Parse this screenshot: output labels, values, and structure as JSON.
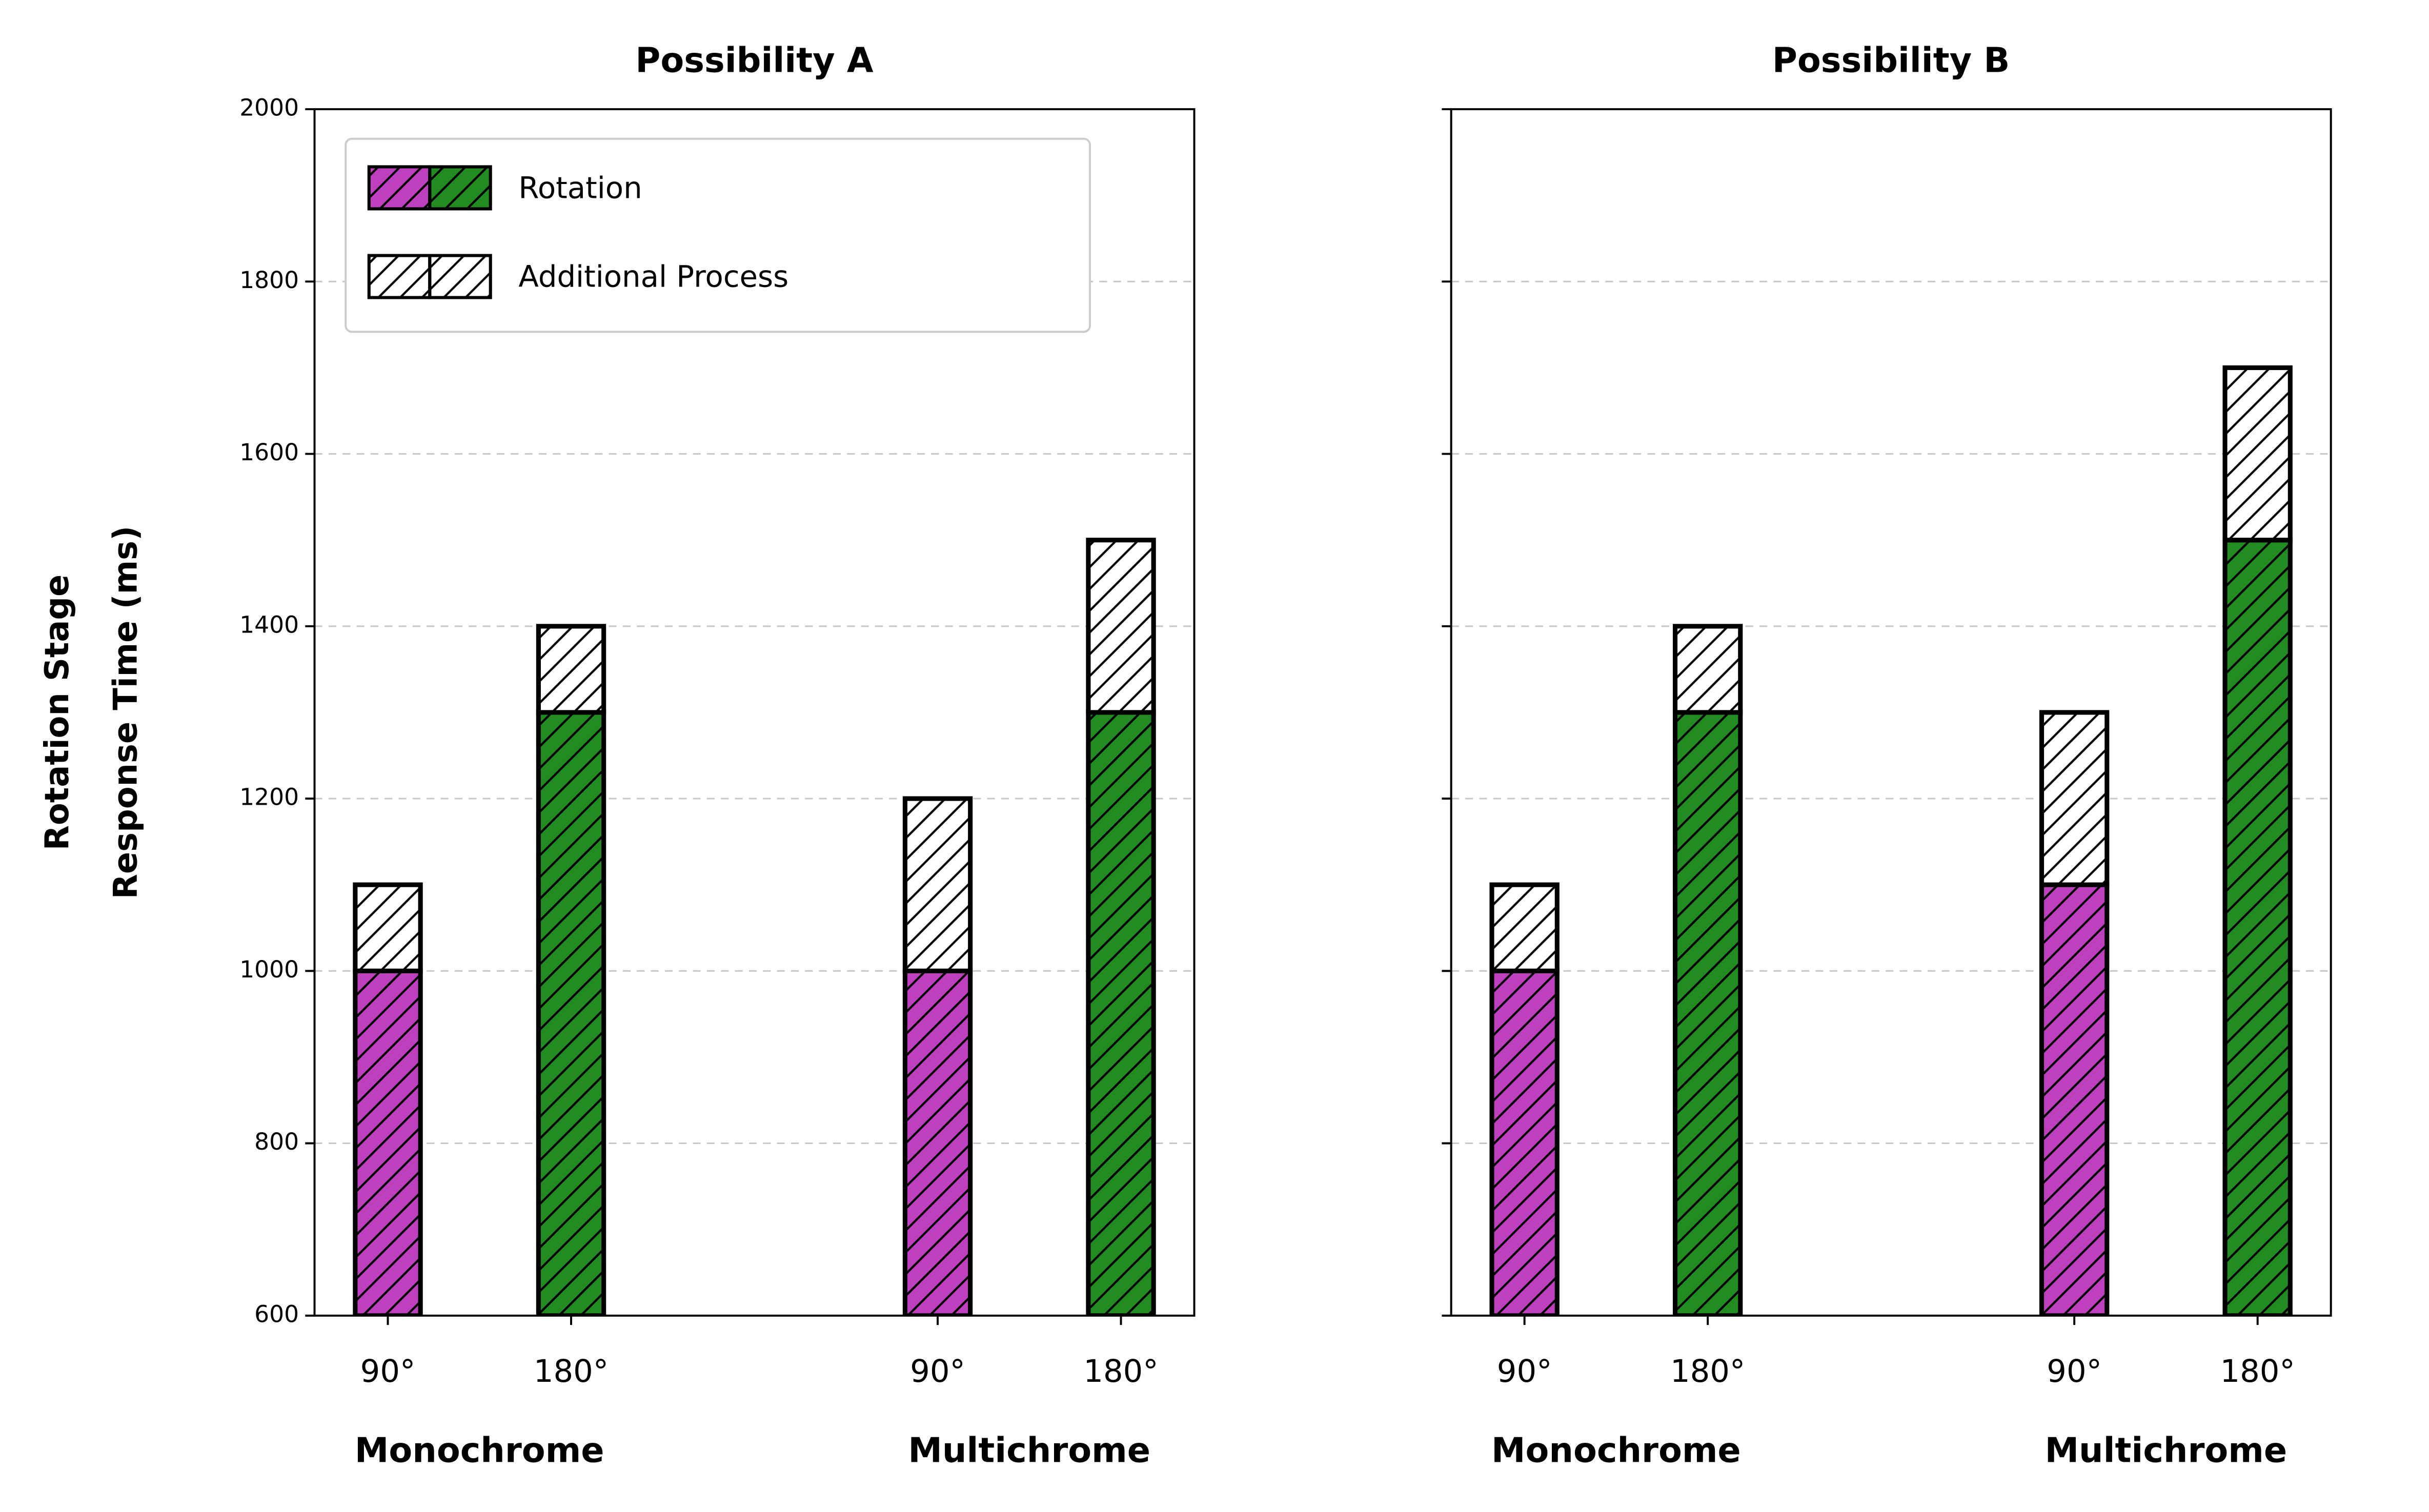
{
  "chart_data": [
    {
      "type": "bar",
      "title": "Possibility A",
      "ylabel": [
        "Rotation Stage",
        "Response Time (ms)"
      ],
      "groups": [
        "Monochrome",
        "Multichrome"
      ],
      "categories": [
        "90°",
        "180°",
        "90°",
        "180°"
      ],
      "series": [
        {
          "name": "Rotation",
          "colors": [
            "#bf40bf",
            "#228b22",
            "#bf40bf",
            "#228b22"
          ],
          "values": [
            1000,
            1300,
            1000,
            1300
          ]
        },
        {
          "name": "Additional Process",
          "color": "#ffffff",
          "values": [
            100,
            100,
            200,
            200
          ]
        }
      ],
      "ylim": [
        600,
        2000
      ],
      "yticks": [
        600,
        800,
        1000,
        1200,
        1400,
        1600,
        1800,
        2000
      ],
      "grid": true,
      "hatch": "/",
      "legend": "upper left"
    },
    {
      "type": "bar",
      "title": "Possibility B",
      "groups": [
        "Monochrome",
        "Multichrome"
      ],
      "categories": [
        "90°",
        "180°",
        "90°",
        "180°"
      ],
      "series": [
        {
          "name": "Rotation",
          "colors": [
            "#bf40bf",
            "#228b22",
            "#bf40bf",
            "#228b22"
          ],
          "values": [
            1000,
            1300,
            1100,
            1500
          ]
        },
        {
          "name": "Additional Process",
          "color": "#ffffff",
          "values": [
            100,
            100,
            200,
            200
          ]
        }
      ],
      "ylim": [
        600,
        2000
      ],
      "yticks": [
        600,
        800,
        1000,
        1200,
        1400,
        1600,
        1800,
        2000
      ],
      "grid": true,
      "hatch": "/",
      "sharey": true
    }
  ]
}
